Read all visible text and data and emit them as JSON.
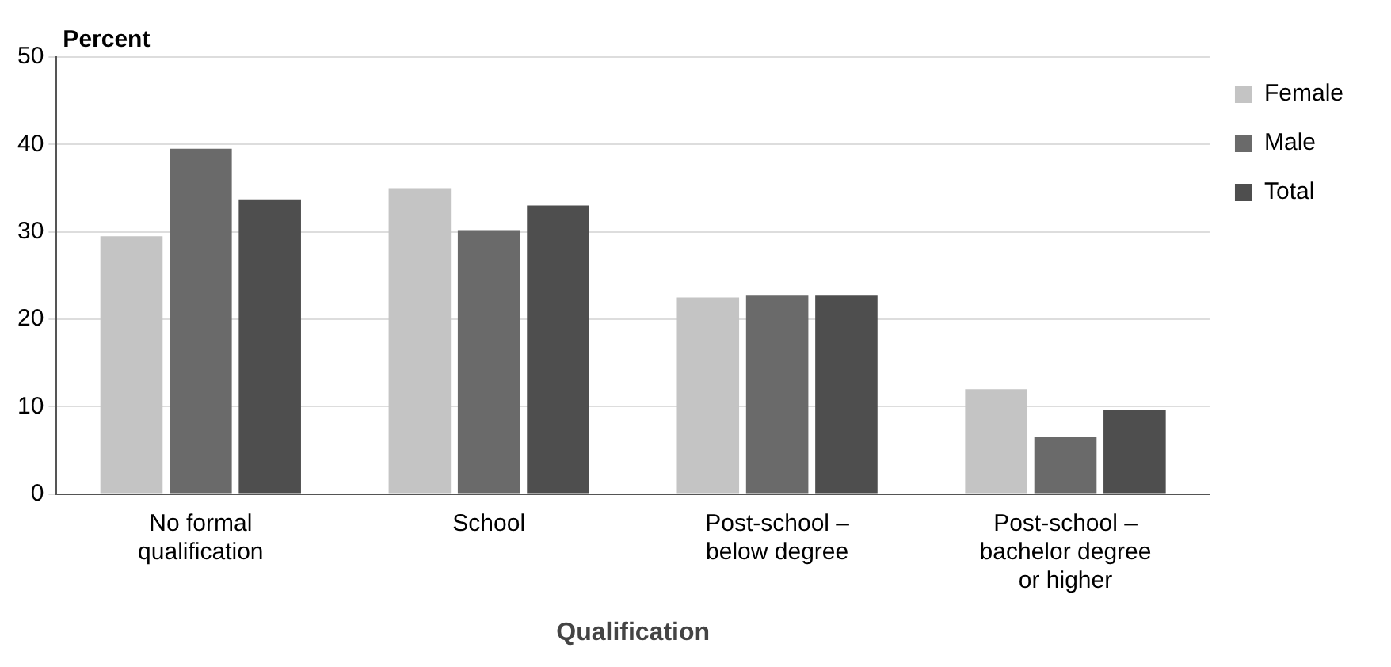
{
  "chart_data": {
    "type": "bar",
    "ylabel": "Percent",
    "xlabel": "Qualification",
    "categories": [
      "No formal\nqualification",
      "School",
      "Post-school –\nbelow degree",
      "Post-school –\nbachelor degree\nor higher"
    ],
    "series": [
      {
        "name": "Female",
        "color": "#c4c4c4",
        "values": [
          29.5,
          35,
          22.5,
          12
        ]
      },
      {
        "name": "Male",
        "color": "#6a6a6a",
        "values": [
          39.5,
          30.2,
          22.7,
          6.5
        ]
      },
      {
        "name": "Total",
        "color": "#4e4e4e",
        "values": [
          33.7,
          33,
          22.7,
          9.6
        ]
      }
    ],
    "ylim": [
      0,
      50
    ],
    "yticks": [
      0,
      10,
      20,
      30,
      40,
      50
    ],
    "grid": "y",
    "legend": "right"
  }
}
